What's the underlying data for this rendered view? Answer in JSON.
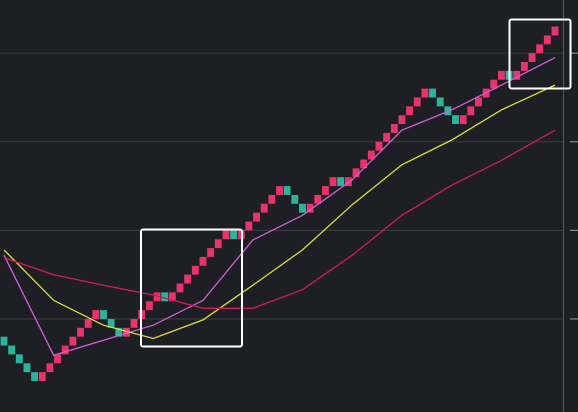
{
  "chart_data": {
    "type": "renko",
    "start": 0.8,
    "brick_colors": {
      "up": "#e8336b",
      "down": "#2bb39b"
    },
    "bricks": [
      0.7,
      0.6,
      0.5,
      0.4,
      0.3,
      0.4,
      0.5,
      0.6,
      0.7,
      0.8,
      0.9,
      1.0,
      1.1,
      1.0,
      0.9,
      0.8,
      0.9,
      1.0,
      1.1,
      1.2,
      1.3,
      1.2,
      1.3,
      1.4,
      1.5,
      1.6,
      1.7,
      1.8,
      1.9,
      2.0,
      1.9,
      2.0,
      2.1,
      2.2,
      2.3,
      2.4,
      2.5,
      2.4,
      2.3,
      2.2,
      2.3,
      2.4,
      2.5,
      2.6,
      2.5,
      2.6,
      2.7,
      2.8,
      2.9,
      3.0,
      3.1,
      3.2,
      3.3,
      3.4,
      3.5,
      3.6,
      3.5,
      3.4,
      3.3,
      3.2,
      3.3,
      3.4,
      3.5,
      3.6,
      3.7,
      3.8,
      3.7,
      3.8,
      3.9,
      4.0,
      4.1,
      4.2,
      4.3
    ],
    "lines": {
      "x": [
        0,
        6.5,
        13,
        19.5,
        26,
        32.5,
        39,
        45.5,
        52,
        58.5,
        65,
        72
      ],
      "series": [
        {
          "color": "#d460d6",
          "values": [
            1.72,
            0.59,
            0.76,
            0.93,
            1.21,
            1.89,
            2.17,
            2.57,
            3.13,
            3.36,
            3.64,
            3.95
          ]
        },
        {
          "color": "#e2df3c",
          "values": [
            1.78,
            1.21,
            0.93,
            0.78,
            0.99,
            1.38,
            1.78,
            2.29,
            2.74,
            3.02,
            3.36,
            3.64
          ]
        },
        {
          "color": "#d11c5b",
          "values": [
            1.69,
            1.5,
            1.38,
            1.27,
            1.12,
            1.12,
            1.33,
            1.72,
            2.17,
            2.51,
            2.79,
            3.13
          ]
        }
      ]
    },
    "ylim": [
      -0.05,
      4.6
    ],
    "yticks": [
      1,
      2,
      3,
      4
    ],
    "grid": true
  }
}
